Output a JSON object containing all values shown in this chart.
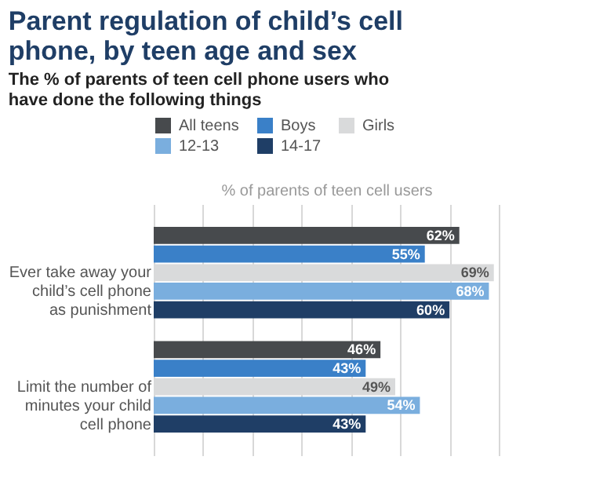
{
  "chart_data": {
    "type": "bar",
    "orientation": "horizontal",
    "title": "Parent regulation of child’s cell phone, by teen age and sex",
    "subtitle": "The % of parents of teen cell phone users who have done the following things",
    "xlabel": "% of parents of teen cell users",
    "categories": [
      "Ever take away your child’s cell phone as punishment",
      "Limit the number of minutes your child cell phone"
    ],
    "series": [
      {
        "name": "All teens",
        "color": "#474a4d",
        "values": [
          62,
          46
        ],
        "value_labels": [
          "62%",
          "46%"
        ]
      },
      {
        "name": "Boys",
        "color": "#3a80c8",
        "values": [
          55,
          43
        ],
        "value_labels": [
          "55%",
          "43%"
        ]
      },
      {
        "name": "Girls",
        "color": "#d9dadb",
        "values": [
          69,
          49
        ],
        "value_labels": [
          "69%",
          "49%"
        ]
      },
      {
        "name": "12-13",
        "color": "#7aaede",
        "values": [
          68,
          54
        ],
        "value_labels": [
          "68%",
          "54%"
        ]
      },
      {
        "name": "14-17",
        "color": "#1f3e66",
        "values": [
          60,
          43
        ],
        "value_labels": [
          "60%",
          "43%"
        ]
      }
    ],
    "grid": "x",
    "legend": "top",
    "tick_labels": "y"
  }
}
